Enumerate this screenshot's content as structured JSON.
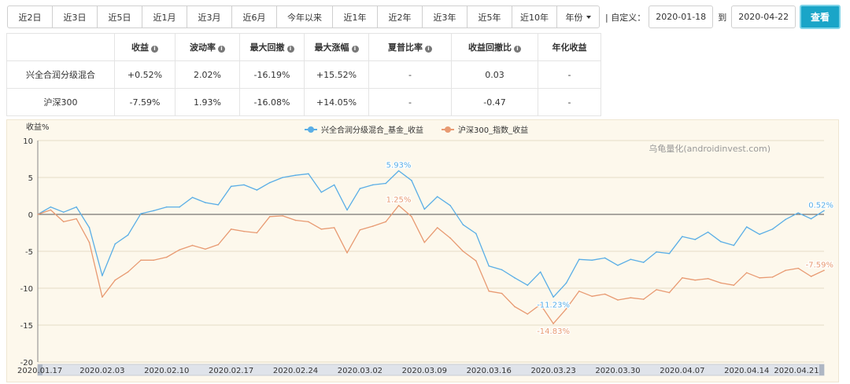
{
  "toolbar": {
    "periods": [
      "近2日",
      "近3日",
      "近5日",
      "近1月",
      "近3月",
      "近6月",
      "今年以来",
      "近1年",
      "近2年",
      "近3年",
      "近5年",
      "近10年"
    ],
    "year_select": "年份",
    "custom_label": "| 自定义：",
    "start_date": "2020-01-18",
    "to_label": "到",
    "end_date": "2020-04-22",
    "query_button": "查看"
  },
  "stats_table": {
    "headers": [
      "收益",
      "波动率",
      "最大回撤",
      "最大涨幅",
      "夏普比率",
      "收益回撤比",
      "年化收益"
    ],
    "rows": [
      {
        "name": "兴全合润分级混合",
        "cells": [
          "+0.52%",
          "2.02%",
          "-16.19%",
          "+15.52%",
          "-",
          "0.03",
          "-"
        ]
      },
      {
        "name": "沪深300",
        "cells": [
          "-7.59%",
          "1.93%",
          "-16.08%",
          "+14.05%",
          "-",
          "-0.47",
          "-"
        ]
      }
    ]
  },
  "colors": {
    "fund": "#5aaee6",
    "index": "#e89a72",
    "positive": "#e0504a",
    "negative": "#2a9a3a",
    "accent": "#1aa5c8"
  },
  "chart_data": {
    "type": "line",
    "ylabel": "收益%",
    "watermark": "乌龟量化(androidinvest.com)",
    "ylim": [
      -20,
      10
    ],
    "yticks": [
      10,
      5,
      0,
      -5,
      -10,
      -15,
      -20
    ],
    "grid": true,
    "legend_position": "top-center",
    "x": [
      "2020.01.17",
      "2020.01.20",
      "2020.01.21",
      "2020.01.22",
      "2020.01.23",
      "2020.02.03",
      "2020.02.04",
      "2020.02.05",
      "2020.02.06",
      "2020.02.07",
      "2020.02.10",
      "2020.02.11",
      "2020.02.12",
      "2020.02.13",
      "2020.02.14",
      "2020.02.17",
      "2020.02.18",
      "2020.02.19",
      "2020.02.20",
      "2020.02.21",
      "2020.02.24",
      "2020.02.25",
      "2020.02.26",
      "2020.02.27",
      "2020.02.28",
      "2020.03.02",
      "2020.03.03",
      "2020.03.04",
      "2020.03.05",
      "2020.03.06",
      "2020.03.09",
      "2020.03.10",
      "2020.03.11",
      "2020.03.12",
      "2020.03.13",
      "2020.03.16",
      "2020.03.17",
      "2020.03.18",
      "2020.03.19",
      "2020.03.20",
      "2020.03.23",
      "2020.03.24",
      "2020.03.25",
      "2020.03.26",
      "2020.03.27",
      "2020.03.30",
      "2020.03.31",
      "2020.04.01",
      "2020.04.02",
      "2020.04.03",
      "2020.04.07",
      "2020.04.08",
      "2020.04.09",
      "2020.04.10",
      "2020.04.13",
      "2020.04.14",
      "2020.04.15",
      "2020.04.16",
      "2020.04.17",
      "2020.04.20",
      "2020.04.21",
      "2020.04.22"
    ],
    "xtick_labels": [
      "2020.01.17",
      "2020.02.03",
      "2020.02.10",
      "2020.02.17",
      "2020.02.24",
      "2020.03.02",
      "2020.03.09",
      "2020.03.16",
      "2020.03.23",
      "2020.03.30",
      "2020.04.07",
      "2020.04.14",
      "2020.04.21"
    ],
    "series": [
      {
        "name": "兴全合润分级混合_基金_收益",
        "values": [
          0,
          1.0,
          0.3,
          1.0,
          -1.8,
          -8.3,
          -4.0,
          -2.8,
          0.1,
          0.5,
          1.0,
          1.0,
          2.3,
          1.6,
          1.3,
          3.8,
          4.0,
          3.3,
          4.3,
          5.0,
          5.3,
          5.5,
          3.0,
          4.0,
          0.6,
          3.5,
          4.0,
          4.2,
          5.9,
          4.6,
          0.7,
          2.4,
          1.2,
          -1.4,
          -2.6,
          -7.0,
          -7.5,
          -8.6,
          -9.6,
          -7.8,
          -11.2,
          -9.3,
          -6.1,
          -6.2,
          -5.9,
          -6.9,
          -6.1,
          -6.5,
          -5.1,
          -5.3,
          -3.0,
          -3.4,
          -2.4,
          -3.7,
          -4.2,
          -1.7,
          -2.7,
          -2.0,
          -0.7,
          0.2,
          -0.6,
          0.5
        ],
        "labels": [
          {
            "index": 28,
            "text": "5.93%"
          },
          {
            "index": 40,
            "text": "-11.23%"
          },
          {
            "index": 61,
            "text": "0.52%"
          }
        ]
      },
      {
        "name": "沪深300_指数_收益",
        "values": [
          0,
          0.6,
          -1.0,
          -0.6,
          -3.8,
          -11.2,
          -8.9,
          -7.8,
          -6.2,
          -6.2,
          -5.8,
          -4.8,
          -4.2,
          -4.7,
          -4.1,
          -2.0,
          -2.3,
          -2.5,
          -0.3,
          -0.2,
          -0.8,
          -1.0,
          -2.0,
          -1.8,
          -5.2,
          -2.1,
          -1.6,
          -1.0,
          1.2,
          -0.3,
          -3.8,
          -1.8,
          -3.2,
          -5.0,
          -6.3,
          -10.4,
          -10.7,
          -12.5,
          -13.5,
          -12.2,
          -14.8,
          -12.8,
          -10.4,
          -11.1,
          -10.8,
          -11.6,
          -11.3,
          -11.5,
          -10.2,
          -10.6,
          -8.6,
          -8.9,
          -8.7,
          -9.3,
          -9.6,
          -7.9,
          -8.6,
          -8.5,
          -7.6,
          -7.3,
          -8.4,
          -7.59
        ],
        "labels": [
          {
            "index": 28,
            "text": "1.25%"
          },
          {
            "index": 40,
            "text": "-14.83%"
          },
          {
            "index": 61,
            "text": "-7.59%"
          }
        ]
      }
    ]
  }
}
